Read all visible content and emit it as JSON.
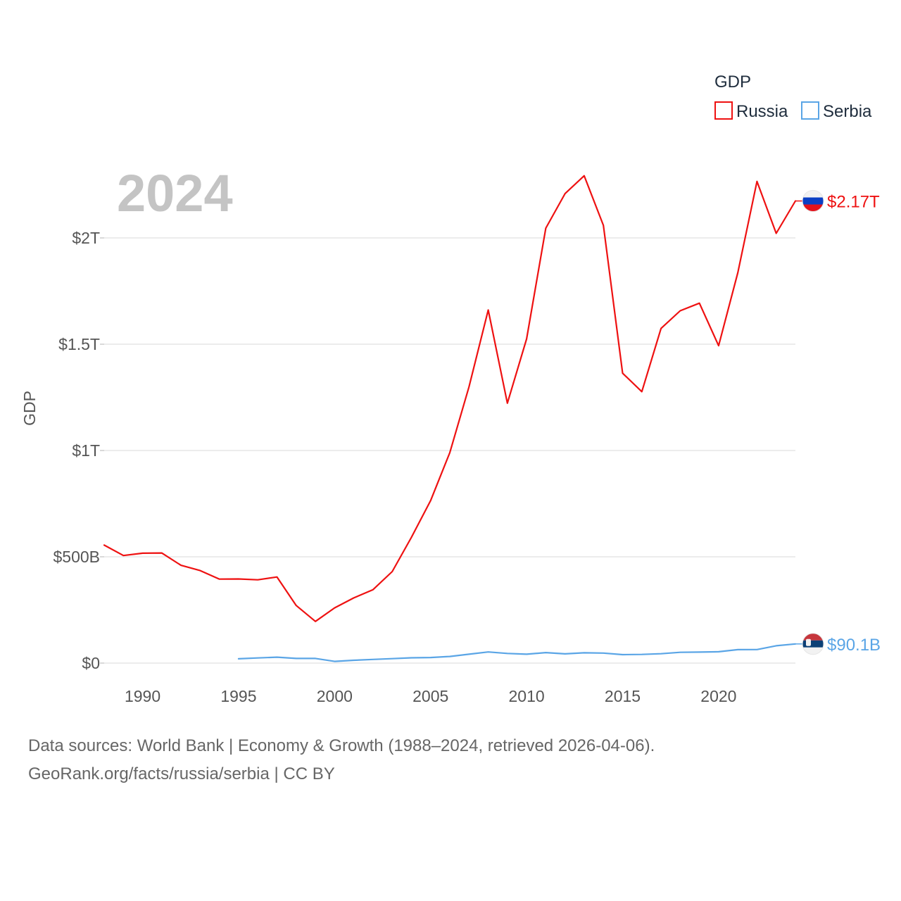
{
  "chart_data": {
    "type": "line",
    "title": "GDP",
    "ylabel": "GDP",
    "xlabel": "",
    "year_indicator": "2024",
    "xlim": [
      1988,
      2024
    ],
    "ylim": [
      0,
      2000000000000
    ],
    "x_ticks": [
      1990,
      1995,
      2000,
      2005,
      2010,
      2015,
      2020
    ],
    "x_tick_labels": [
      "1990",
      "1995",
      "2000",
      "2005",
      "2010",
      "2015",
      "2020"
    ],
    "y_ticks": [
      0,
      500000000000,
      1000000000000,
      1500000000000,
      2000000000000
    ],
    "y_tick_labels": [
      "$0",
      "$500B",
      "$1T",
      "$1.5T",
      "$2T"
    ],
    "grid": true,
    "legend": {
      "title": "GDP",
      "position": "top-right"
    },
    "series": [
      {
        "name": "Russia",
        "color": "#ee1111",
        "end_label": "$2.17T",
        "flag": "russia-flag-icon",
        "x": [
          1988,
          1989,
          1990,
          1991,
          1992,
          1993,
          1994,
          1995,
          1996,
          1997,
          1998,
          1999,
          2000,
          2001,
          2002,
          2003,
          2004,
          2005,
          2006,
          2007,
          2008,
          2009,
          2010,
          2011,
          2012,
          2013,
          2014,
          2015,
          2016,
          2017,
          2018,
          2019,
          2020,
          2021,
          2022,
          2023,
          2024
        ],
        "values": [
          555000000000,
          506000000000,
          517000000000,
          518000000000,
          460000000000,
          435000000000,
          395000000000,
          395600000000,
          391700000000,
          404900000000,
          271000000000,
          195900000000,
          259700000000,
          306600000000,
          345500000000,
          430300000000,
          591000000000,
          764000000000,
          989900000000,
          1299700000000,
          1660800000000,
          1222600000000,
          1524900000000,
          2045900000000,
          2208300000000,
          2292500000000,
          2059200000000,
          1363500000000,
          1276800000000,
          1574200000000,
          1657300000000,
          1693100000000,
          1493100000000,
          1836900000000,
          2266000000000,
          2021400000000,
          2173800000000
        ]
      },
      {
        "name": "Serbia",
        "color": "#5aa5e6",
        "end_label": "$90.1B",
        "flag": "serbia-flag-icon",
        "x": [
          1995,
          1996,
          1997,
          1998,
          1999,
          2000,
          2001,
          2002,
          2003,
          2004,
          2005,
          2006,
          2007,
          2008,
          2009,
          2010,
          2011,
          2012,
          2013,
          2014,
          2015,
          2016,
          2017,
          2018,
          2019,
          2020,
          2021,
          2022,
          2023,
          2024
        ],
        "values": [
          20300000000,
          24100000000,
          27800000000,
          22000000000,
          21700000000,
          8000000000,
          13400000000,
          17100000000,
          20700000000,
          24800000000,
          26300000000,
          31200000000,
          41800000000,
          52200000000,
          45200000000,
          41800000000,
          49300000000,
          43300000000,
          48400000000,
          47100000000,
          39700000000,
          40700000000,
          44200000000,
          50600000000,
          51500000000,
          53400000000,
          63100000000,
          63600000000,
          81500000000,
          90100000000
        ]
      }
    ]
  },
  "footer": {
    "line1": "Data sources: World Bank | Economy & Growth (1988–2024, retrieved 2026-04-06).",
    "line2": "GeoRank.org/facts/russia/serbia | CC BY"
  }
}
